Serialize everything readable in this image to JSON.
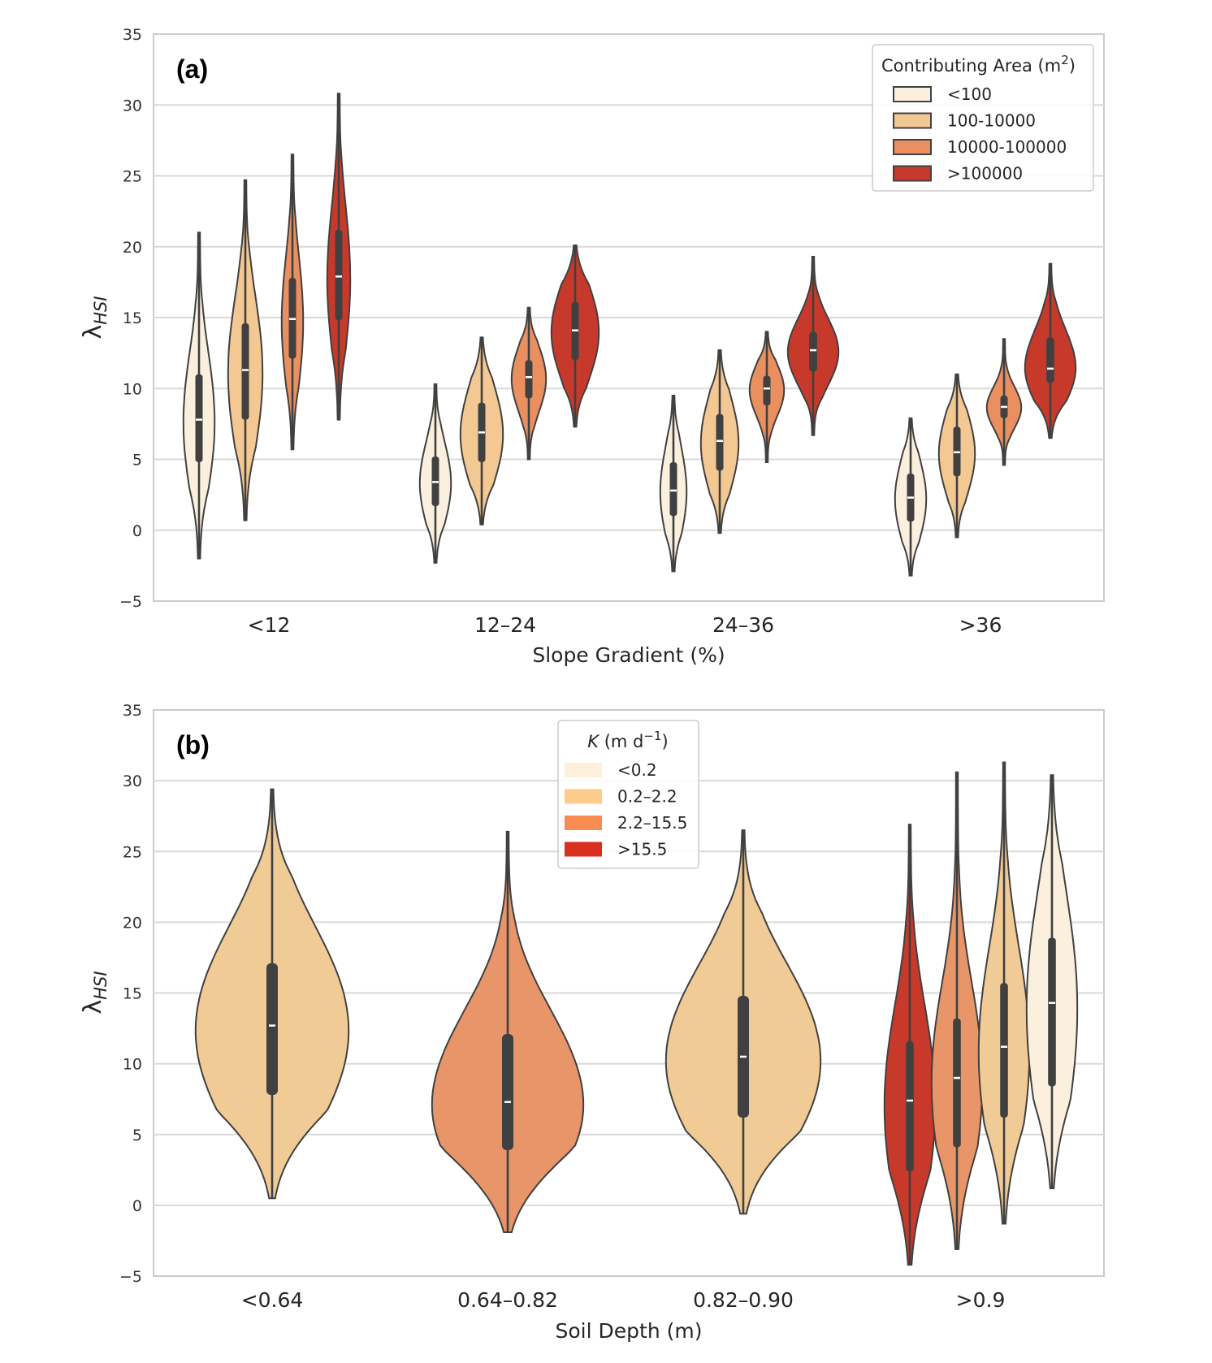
{
  "chart_data": [
    {
      "type": "violin",
      "panel_label": "(a)",
      "xlabel": "Slope Gradient (%)",
      "ylabel_base": "λ",
      "ylabel_sub": "HSI",
      "ylim": [
        -5,
        35
      ],
      "yticks": [
        "−5",
        "0",
        "5",
        "10",
        "15",
        "20",
        "25",
        "30",
        "35"
      ],
      "grid": true,
      "categories": [
        "<12",
        "12–24",
        "24–36",
        ">36"
      ],
      "legend": {
        "position": "top-right",
        "title_main": "Contributing Area (m",
        "title_sup": "2",
        "title_end": ")",
        "entries": [
          "<100",
          "100-10000",
          "10000-100000",
          ">100000"
        ],
        "colors": [
          "#FBF0DE",
          "#F3C893",
          "#EA9060",
          "#C73A2B"
        ]
      },
      "series": [
        {
          "name": "<100",
          "color": "#FBF0DE",
          "min": [
            -2,
            -2.3,
            -2.9,
            -3.2
          ],
          "q1": [
            4.8,
            1.7,
            1.0,
            0.6
          ],
          "median": [
            7.8,
            3.4,
            2.8,
            2.3
          ],
          "q3": [
            11,
            5.2,
            4.8,
            4.0
          ],
          "max": [
            21,
            10.3,
            9.5,
            7.9
          ]
        },
        {
          "name": "100-10000",
          "color": "#F3C893",
          "min": [
            0.7,
            0.4,
            -0.2,
            -0.5
          ],
          "q1": [
            7.8,
            4.8,
            4.2,
            3.8
          ],
          "median": [
            11.3,
            6.9,
            6.3,
            5.5
          ],
          "q3": [
            14.6,
            9.0,
            8.2,
            7.3
          ],
          "max": [
            24.7,
            13.6,
            12.7,
            11.0
          ]
        },
        {
          "name": "10000-100000",
          "color": "#EA9060",
          "min": [
            5.7,
            5.0,
            4.8,
            4.6
          ],
          "q1": [
            12.1,
            9.3,
            8.8,
            7.9
          ],
          "median": [
            14.9,
            10.8,
            10.0,
            8.7
          ],
          "q3": [
            17.8,
            12.0,
            10.9,
            9.5
          ],
          "max": [
            26.5,
            15.7,
            14.0,
            13.5
          ]
        },
        {
          "name": ">100000",
          "color": "#C73A2B",
          "min": [
            7.8,
            7.3,
            6.7,
            6.5
          ],
          "q1": [
            14.8,
            12.0,
            11.2,
            10.4
          ],
          "median": [
            17.9,
            14.1,
            12.7,
            11.4
          ],
          "q3": [
            21.2,
            16.1,
            14.0,
            13.6
          ],
          "max": [
            30.8,
            20.1,
            19.3,
            18.8
          ]
        }
      ]
    },
    {
      "type": "violin",
      "panel_label": "(b)",
      "xlabel": "Soil Depth (m)",
      "ylabel_base": "λ",
      "ylabel_sub": "HSI",
      "ylim": [
        -5,
        35
      ],
      "yticks": [
        "−5",
        "0",
        "5",
        "10",
        "15",
        "20",
        "25",
        "30",
        "35"
      ],
      "grid": true,
      "categories": [
        "<0.64",
        "0.64–0.82",
        "0.82–0.90",
        ">0.9"
      ],
      "legend": {
        "position": "upper-center",
        "title_italic": "K",
        "title_main": " (m d",
        "title_sup": "−1",
        "title_end": ")",
        "entries": [
          "<0.2",
          "0.2–2.2",
          "2.2–15.5",
          ">15.5"
        ],
        "colors": [
          "#FEF0DA",
          "#FDCB8B",
          "#F98C52",
          "#D7301F"
        ]
      },
      "violins": [
        {
          "category": "<0.64",
          "k_class": "0.2–2.2",
          "color": "#F0CB95",
          "min": 0.5,
          "q1": 7.8,
          "median": 12.7,
          "q3": 17.1,
          "max": 29.4
        },
        {
          "category": "0.64–0.82",
          "k_class": "2.2–15.5",
          "color": "#E8956A",
          "min": -1.9,
          "q1": 3.9,
          "median": 7.3,
          "q3": 12.1,
          "max": 26.4
        },
        {
          "category": "0.82–0.90",
          "k_class": "0.2–2.2",
          "color": "#F0CB95",
          "min": -0.6,
          "q1": 6.2,
          "median": 10.5,
          "q3": 14.8,
          "max": 26.5
        },
        {
          "category": ">0.9",
          "k_class": ">15.5",
          "color": "#C73A2B",
          "min": -4.2,
          "q1": 2.4,
          "median": 7.4,
          "q3": 11.6,
          "max": 26.9
        },
        {
          "category": ">0.9",
          "k_class": "2.2–15.5",
          "color": "#E8956A",
          "min": -3.1,
          "q1": 4.1,
          "median": 9.0,
          "q3": 13.2,
          "max": 30.6
        },
        {
          "category": ">0.9",
          "k_class": "0.2–2.2",
          "color": "#F0CB95",
          "min": -1.3,
          "q1": 6.2,
          "median": 11.2,
          "q3": 15.7,
          "max": 31.3
        },
        {
          "category": ">0.9",
          "k_class": "<0.2",
          "color": "#FBF0DE",
          "min": 1.2,
          "q1": 8.4,
          "median": 14.3,
          "q3": 18.9,
          "max": 30.4
        }
      ]
    }
  ]
}
